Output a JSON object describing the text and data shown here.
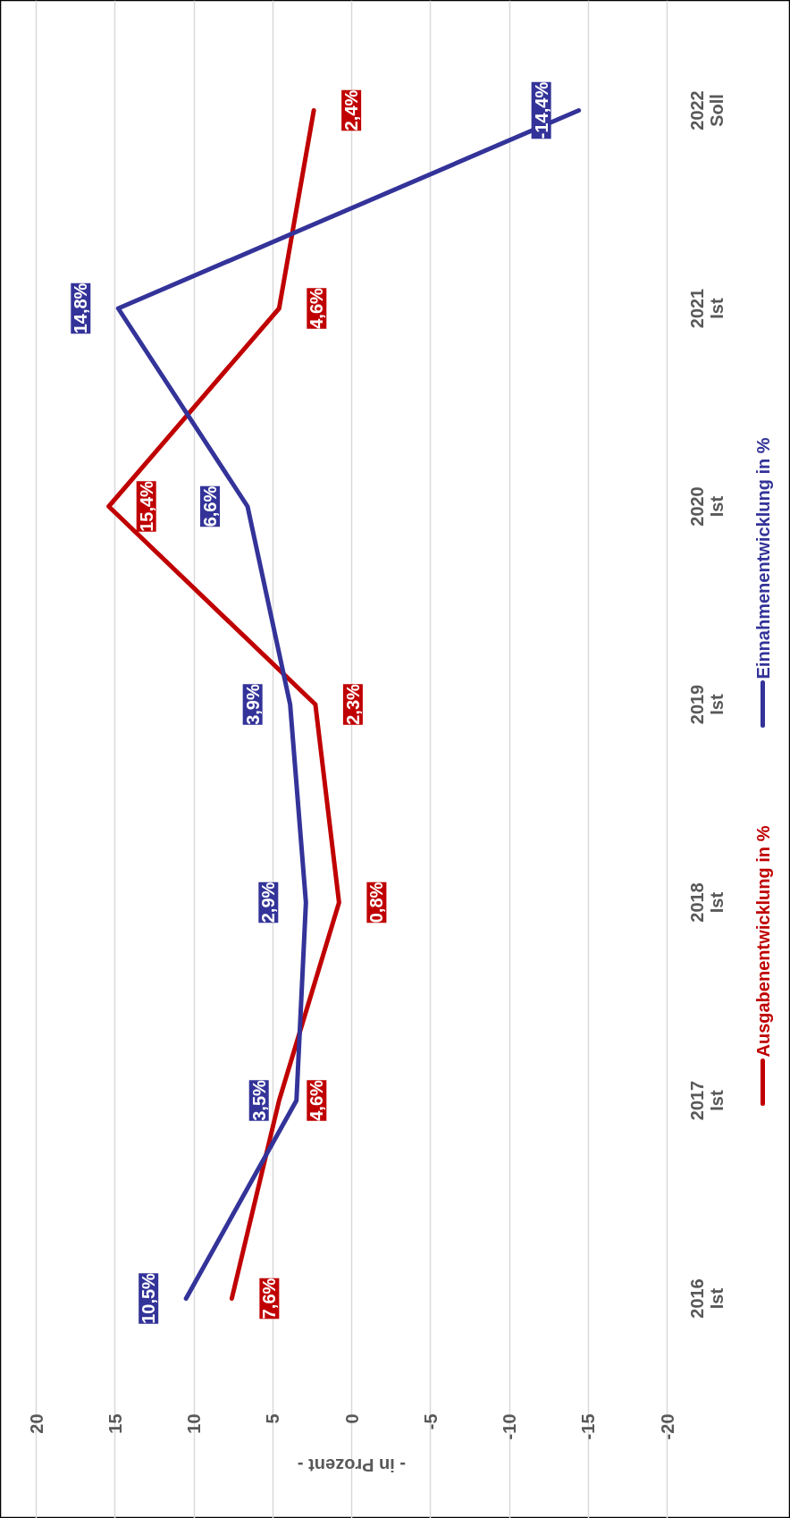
{
  "chart_data": {
    "type": "line",
    "orientation": "horizontal",
    "categories": [
      "2022\nSoll",
      "2021\nIst",
      "2020\nIst",
      "2019\nIst",
      "2018\nIst",
      "2017\nIst",
      "2016\nIst"
    ],
    "series": [
      {
        "name": "Ausgabenentwicklung in %",
        "color": "#c00000",
        "values": [
          2.4,
          4.6,
          15.4,
          2.3,
          0.8,
          4.6,
          7.6
        ],
        "value_labels": [
          "2,4%",
          "4,6%",
          "15,4%",
          "2,3%",
          "0,8%",
          "4,6%",
          "7,6%"
        ]
      },
      {
        "name": "Einnahmenentwicklung in %",
        "color": "#333399",
        "values": [
          -14.4,
          14.8,
          6.6,
          3.9,
          2.9,
          3.5,
          10.5
        ],
        "value_labels": [
          "-14,4%",
          "14,8%",
          "6,6%",
          "3,9%",
          "2,9%",
          "3,5%",
          "10,5%"
        ]
      }
    ],
    "xlabel": "- in Prozent -",
    "xlim": [
      20,
      -20
    ],
    "xticks": [
      20,
      15,
      10,
      5,
      0,
      -5,
      -10,
      -15,
      -20
    ],
    "grid": "x",
    "legend": "right",
    "marker": "none",
    "line_style": "solid"
  }
}
